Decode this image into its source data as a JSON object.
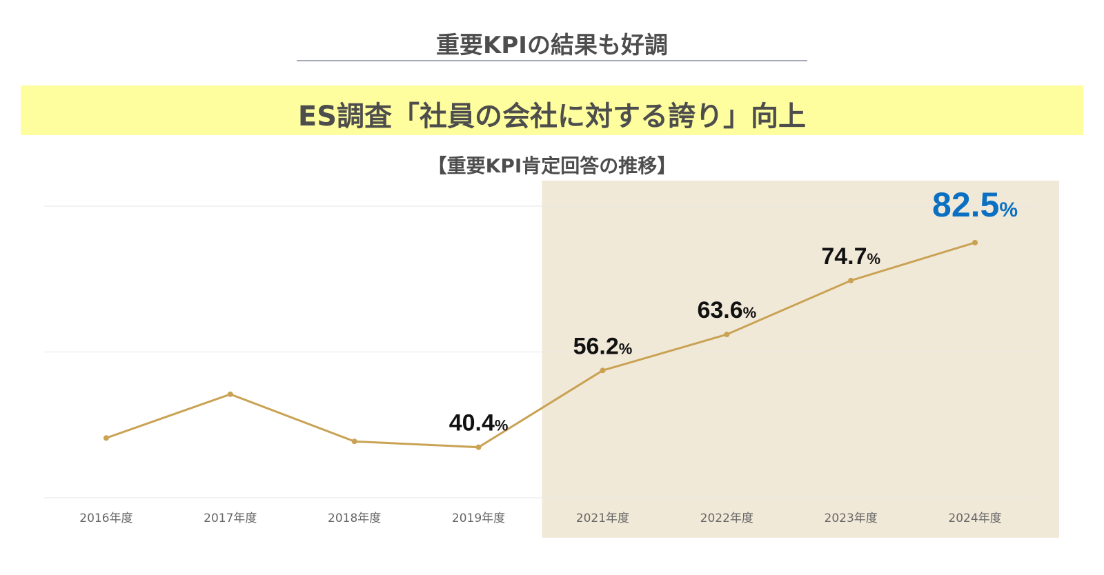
{
  "header": {
    "title": "重要KPIの結果も好調",
    "banner": "ES調査「社員の会社に対する誇り」向上",
    "banner_color": "#fefe9e"
  },
  "chart_data": {
    "type": "line",
    "title": "【重要KPI肯定回答の推移】",
    "categories": [
      "2016年度",
      "2017年度",
      "2018年度",
      "2019年度",
      "2021年度",
      "2022年度",
      "2023年度",
      "2024年度"
    ],
    "series": [
      {
        "values": [
          42.3,
          51.3,
          41.6,
          40.4,
          56.2,
          63.6,
          74.7,
          82.5
        ]
      }
    ],
    "data_labels": [
      null,
      null,
      null,
      "40.4",
      "56.2",
      "63.6",
      "74.7",
      "82.5"
    ],
    "unit": "%",
    "ylim": [
      30,
      90
    ],
    "grid": true,
    "highlight_range": [
      "2021年度",
      "2024年度"
    ],
    "colors": {
      "line": "#c9a254",
      "highlight": "#f1e9d8",
      "label": "#111111",
      "latest_label": "#0b70c2",
      "tick": "#666666",
      "grid": "#e6e6e6"
    }
  }
}
